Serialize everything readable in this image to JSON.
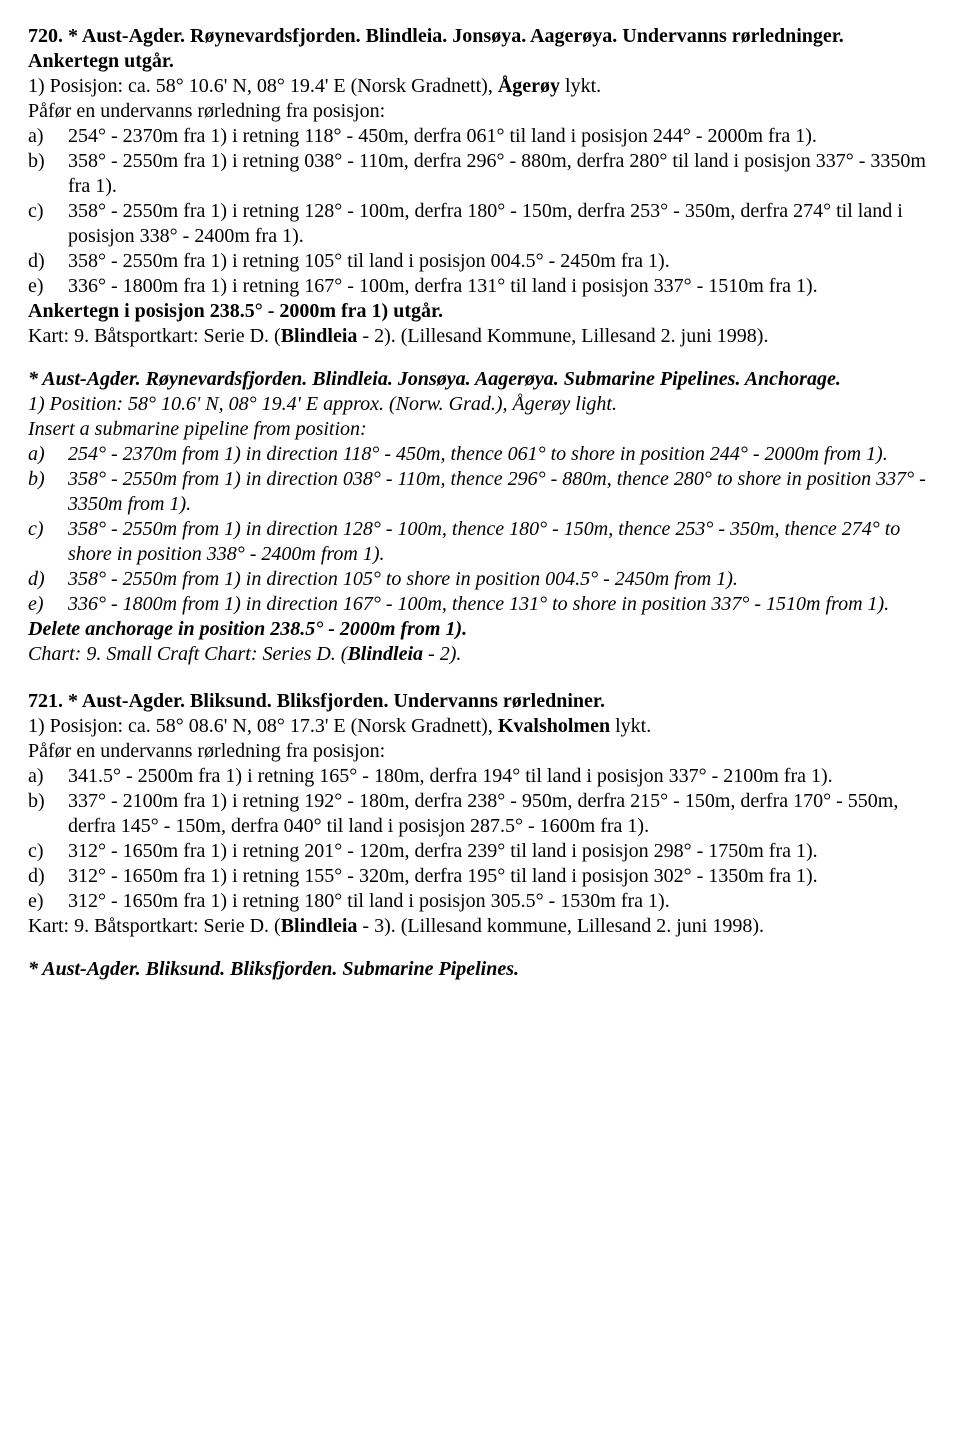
{
  "n720": {
    "title": "720. * Aust-Agder. Røynevardsfjorden. Blindleia. Jonsøya. Aagerøya. Undervanns rørledninger. Ankertegn utgår.",
    "posLabel": "1) Posisjon: ca. 58° 10.6' N, 08° 19.4' E (Norsk Gradnett), ",
    "posBold": "Ågerøy",
    "posTail": " lykt.",
    "intro": "Påfør en undervanns rørledning fra posisjon:",
    "items": [
      {
        "l": "a)",
        "t": "254° - 2370m fra 1) i retning 118° - 450m, derfra 061° til land i posisjon 244° - 2000m fra 1)."
      },
      {
        "l": "b)",
        "t": "358° - 2550m fra 1) i retning 038° - 110m, derfra 296° - 880m, derfra 280° til land i posisjon 337° - 3350m fra 1)."
      },
      {
        "l": "c)",
        "t": "358° - 2550m fra 1) i retning 128° - 100m, derfra 180° - 150m, derfra 253° - 350m, derfra 274° til land i posisjon 338° - 2400m fra 1)."
      },
      {
        "l": "d)",
        "t": "358° - 2550m fra 1) i retning 105° til land i posisjon 004.5° - 2450m fra 1)."
      },
      {
        "l": "e)",
        "t": "336° - 1800m fra 1) i retning 167° - 100m, derfra 131° til land i posisjon 337° - 1510m fra 1)."
      }
    ],
    "anker": "Ankertegn i posisjon 238.5° - 2000m fra 1) utgår.",
    "kart1": "Kart: 9. Båtsportkart: Serie D. (",
    "kart1Bold": "Blindleia",
    "kart1Tail": " - 2). (Lillesand Kommune, Lillesand 2. juni 1998).",
    "enTitle": "* Aust-Agder. Røynevardsfjorden. Blindleia. Jonsøya. Aagerøya. Submarine Pipelines. Anchorage.",
    "enPos": "1) Position: 58° 10.6' N, 08° 19.4' E approx. (Norw. Grad.), Ågerøy light.",
    "enIntro": "Insert a submarine pipeline from position:",
    "enItems": [
      {
        "l": "a)",
        "t": "254° - 2370m from 1) in direction 118° - 450m, thence 061° to shore in position 244° - 2000m from 1)."
      },
      {
        "l": "b)",
        "t": "358° - 2550m from 1) in direction 038° - 110m, thence 296° - 880m, thence 280° to shore in position 337° - 3350m from 1)."
      },
      {
        "l": "c)",
        "t": "358° - 2550m from 1) in direction 128° - 100m, thence 180° - 150m, thence 253° - 350m, thence 274° to shore in position 338° - 2400m from 1)."
      },
      {
        "l": "d)",
        "t": "358° - 2550m from 1) in direction 105° to shore in position 004.5° - 2450m from 1)."
      },
      {
        "l": "e)",
        "t": "336° - 1800m from 1) in direction 167° - 100m, thence 131° to shore in position 337° - 1510m from 1)."
      }
    ],
    "enDelete": "Delete anchorage in position 238.5° - 2000m from 1).",
    "enChart1": "Chart: 9. Small Craft Chart: Series D. (",
    "enChart1Bold": "Blindleia",
    "enChart1Tail": " - 2)."
  },
  "n721": {
    "title": "721. * Aust-Agder. Bliksund. Bliksfjorden. Undervanns rørledniner.",
    "posLabel": "1) Posisjon: ca. 58° 08.6' N, 08° 17.3' E (Norsk Gradnett), ",
    "posBold": "Kvalsholmen",
    "posTail": " lykt.",
    "intro": "Påfør en undervanns rørledning fra posisjon:",
    "items": [
      {
        "l": "a)",
        "t": "341.5° - 2500m fra 1) i retning 165° - 180m, derfra 194° til land i posisjon 337° - 2100m fra 1)."
      },
      {
        "l": "b)",
        "t": "337° - 2100m fra 1) i retning 192° - 180m, derfra 238° - 950m, derfra 215° - 150m, derfra 170° - 550m, derfra 145° - 150m, derfra 040° til land i posisjon 287.5° - 1600m fra 1)."
      },
      {
        "l": "c)",
        "t": "312° - 1650m fra 1) i retning 201° - 120m, derfra 239° til land i posisjon 298° - 1750m fra 1)."
      },
      {
        "l": "d)",
        "t": "312° - 1650m fra 1) i retning 155° - 320m, derfra 195° til land i posisjon 302° - 1350m fra 1)."
      },
      {
        "l": "e)",
        "t": "312° - 1650m fra 1) i retning 180° til land i posisjon 305.5° - 1530m fra 1)."
      }
    ],
    "kart1": "Kart: 9. Båtsportkart: Serie D. (",
    "kart1Bold": "Blindleia",
    "kart1Tail": " - 3). (Lillesand kommune, Lillesand 2. juni 1998).",
    "enTitle": "* Aust-Agder. Bliksund. Bliksfjorden. Submarine Pipelines."
  }
}
